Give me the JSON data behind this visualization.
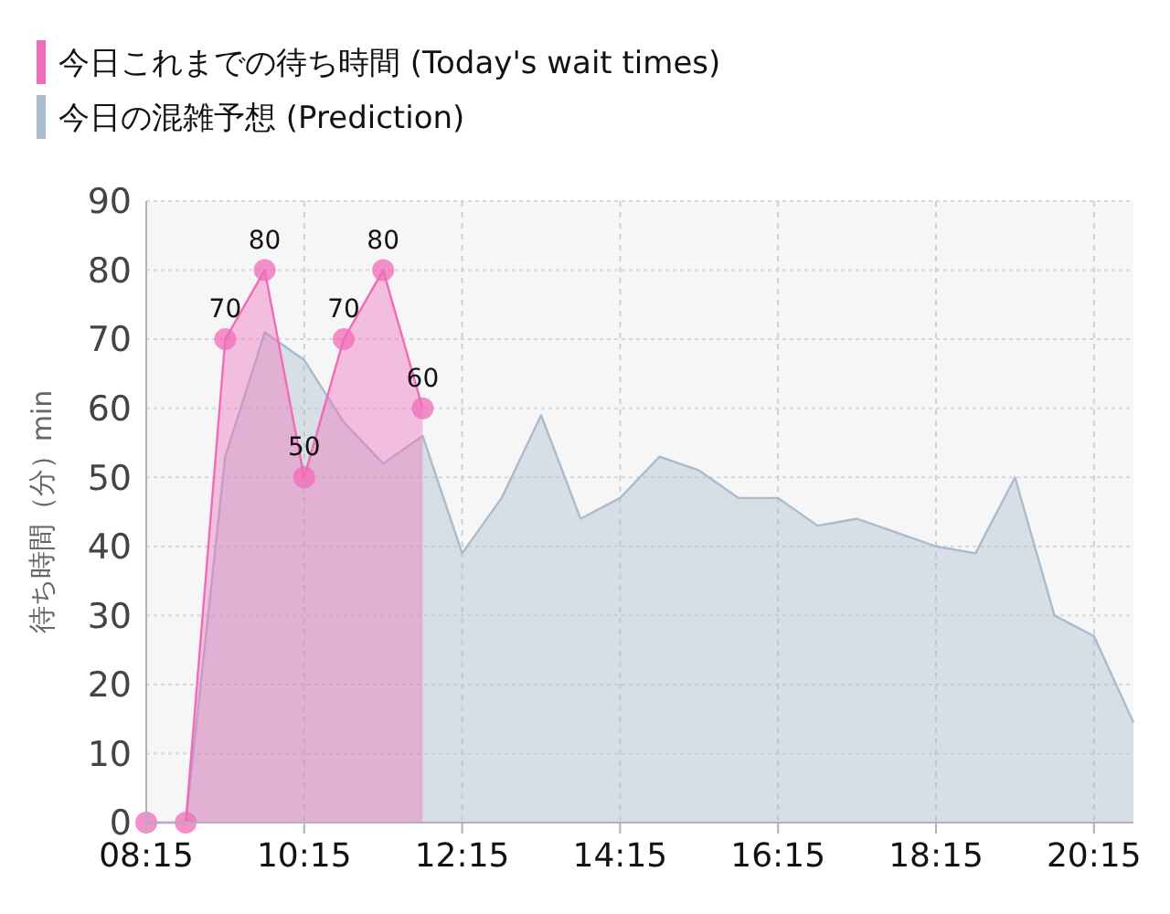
{
  "chart_data": {
    "type": "area",
    "ylabel": "待ち時間（分）min",
    "xlim": [
      8.25,
      20.75
    ],
    "xticks": [
      {
        "value": 8.25,
        "label": "08:15"
      },
      {
        "value": 10.25,
        "label": "10:15"
      },
      {
        "value": 12.25,
        "label": "12:15"
      },
      {
        "value": 14.25,
        "label": "14:15"
      },
      {
        "value": 16.25,
        "label": "16:15"
      },
      {
        "value": 18.25,
        "label": "18:15"
      },
      {
        "value": 20.25,
        "label": "20:15"
      }
    ],
    "ylim": [
      0,
      90
    ],
    "yticks": [
      0,
      10,
      20,
      30,
      40,
      50,
      60,
      70,
      80,
      90
    ],
    "grid": true,
    "legend": "top left",
    "series": [
      {
        "name": "今日の混雑予想 (Prediction)",
        "color": "#a9bccd",
        "x": [
          8.75,
          9.25,
          9.75,
          10.25,
          10.75,
          11.25,
          11.75,
          12.25,
          12.75,
          13.25,
          13.75,
          14.25,
          14.75,
          15.25,
          15.75,
          16.25,
          16.75,
          17.25,
          17.75,
          18.25,
          18.75,
          19.25,
          19.75,
          20.25,
          20.75
        ],
        "values": [
          0,
          53,
          71,
          67,
          58,
          52,
          56,
          39,
          47,
          59,
          44,
          47,
          53,
          51,
          47,
          47,
          43,
          44,
          42,
          40,
          39,
          50,
          30,
          27,
          14.5
        ]
      },
      {
        "name": "今日これまでの待ち時間 (Today's wait times)",
        "color": "#f06cb8",
        "marker": "circle",
        "x": [
          8.25,
          8.75,
          9.25,
          9.75,
          10.25,
          10.75,
          11.25,
          11.75
        ],
        "values": [
          0,
          0,
          70,
          80,
          50,
          70,
          80,
          60
        ],
        "value_labels": [
          null,
          null,
          "70",
          "80",
          "50",
          "70",
          "80",
          "60"
        ]
      }
    ]
  }
}
